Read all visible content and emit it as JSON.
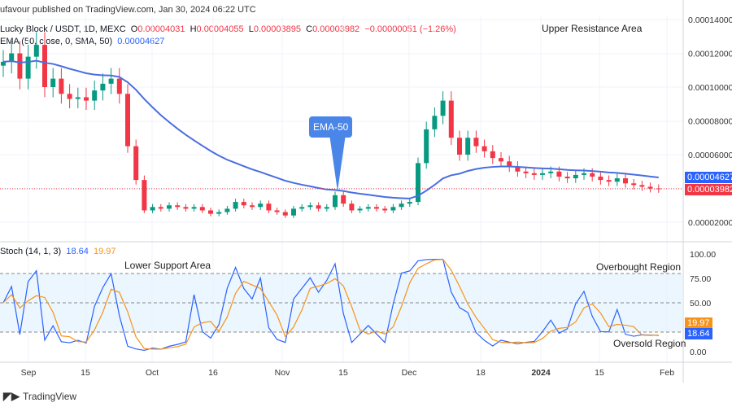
{
  "header": {
    "published": "ufavour published on TradingView.com, Jan 30, 2024 06:22 UTC",
    "symbol": "Lucky Block / USDT, 1D, MEXC",
    "open": "0.00004031",
    "high": "0.00004055",
    "low": "0.00003895",
    "close": "0.00003982",
    "change": "−0.00000051 (−1.26%)",
    "ema_label": "EMA (50, close, 0, SMA, 50)",
    "ema_value": "0.00004627"
  },
  "annotations": {
    "upper": "Upper Resistance Area",
    "lower": "Lower Support Area",
    "ema_callout": "EMA-50",
    "overbought": "Overbought Region",
    "oversold": "Oversold Region"
  },
  "stoch": {
    "label": "Stoch (14, 1, 3)",
    "k": "18.64",
    "d": "19.97"
  },
  "price_tags": {
    "ema": "0.00004627",
    "last": "0.00003982"
  },
  "footer": {
    "brand": "TradingView"
  },
  "colors": {
    "up": "#089981",
    "down": "#f23645",
    "ema": "#4a6ee0",
    "k": "#2962ff",
    "d": "#f7931a",
    "band": "#e3f2fd"
  },
  "chart_data": {
    "type": "candlestick",
    "price_axis": [
      "0.00014000",
      "0.00012000",
      "0.00010000",
      "0.00008000",
      "0.00006000",
      "0.00002000"
    ],
    "price_range": [
      5e-06,
      0.000145
    ],
    "time_axis": [
      "Sep",
      "15",
      "Oct",
      "16",
      "Nov",
      "15",
      "Dec",
      "18",
      "2024",
      "15",
      "Feb"
    ],
    "closes_e5": [
      11.5,
      12,
      10.5,
      11.8,
      12.5,
      10,
      10.5,
      9.6,
      9.3,
      9.4,
      9.2,
      9.8,
      10.2,
      10.5,
      9.6,
      6.5,
      4.5,
      2.7,
      2.9,
      2.8,
      3.0,
      2.9,
      2.8,
      2.9,
      2.7,
      2.5,
      2.6,
      2.8,
      3.2,
      3.0,
      2.9,
      3.1,
      2.7,
      2.6,
      2.4,
      2.8,
      2.9,
      3.0,
      2.8,
      2.9,
      3.6,
      3.1,
      2.7,
      2.8,
      2.9,
      2.8,
      2.7,
      2.9,
      3.1,
      3.2,
      5.5,
      7.5,
      8.3,
      9.2,
      7.0,
      6.0,
      7.0,
      6.5,
      6.2,
      5.8,
      5.6,
      5.3,
      5.0,
      4.9,
      4.8,
      4.9,
      5.0,
      4.7,
      4.6,
      4.8,
      4.9,
      4.7,
      4.5,
      4.4,
      4.6,
      4.3,
      4.2,
      4.1,
      4.0,
      3.98
    ],
    "stoch_axis": [
      "100.00",
      "75.00",
      "50.00",
      "0.00"
    ],
    "stoch_levels": [
      80,
      50,
      20
    ]
  }
}
